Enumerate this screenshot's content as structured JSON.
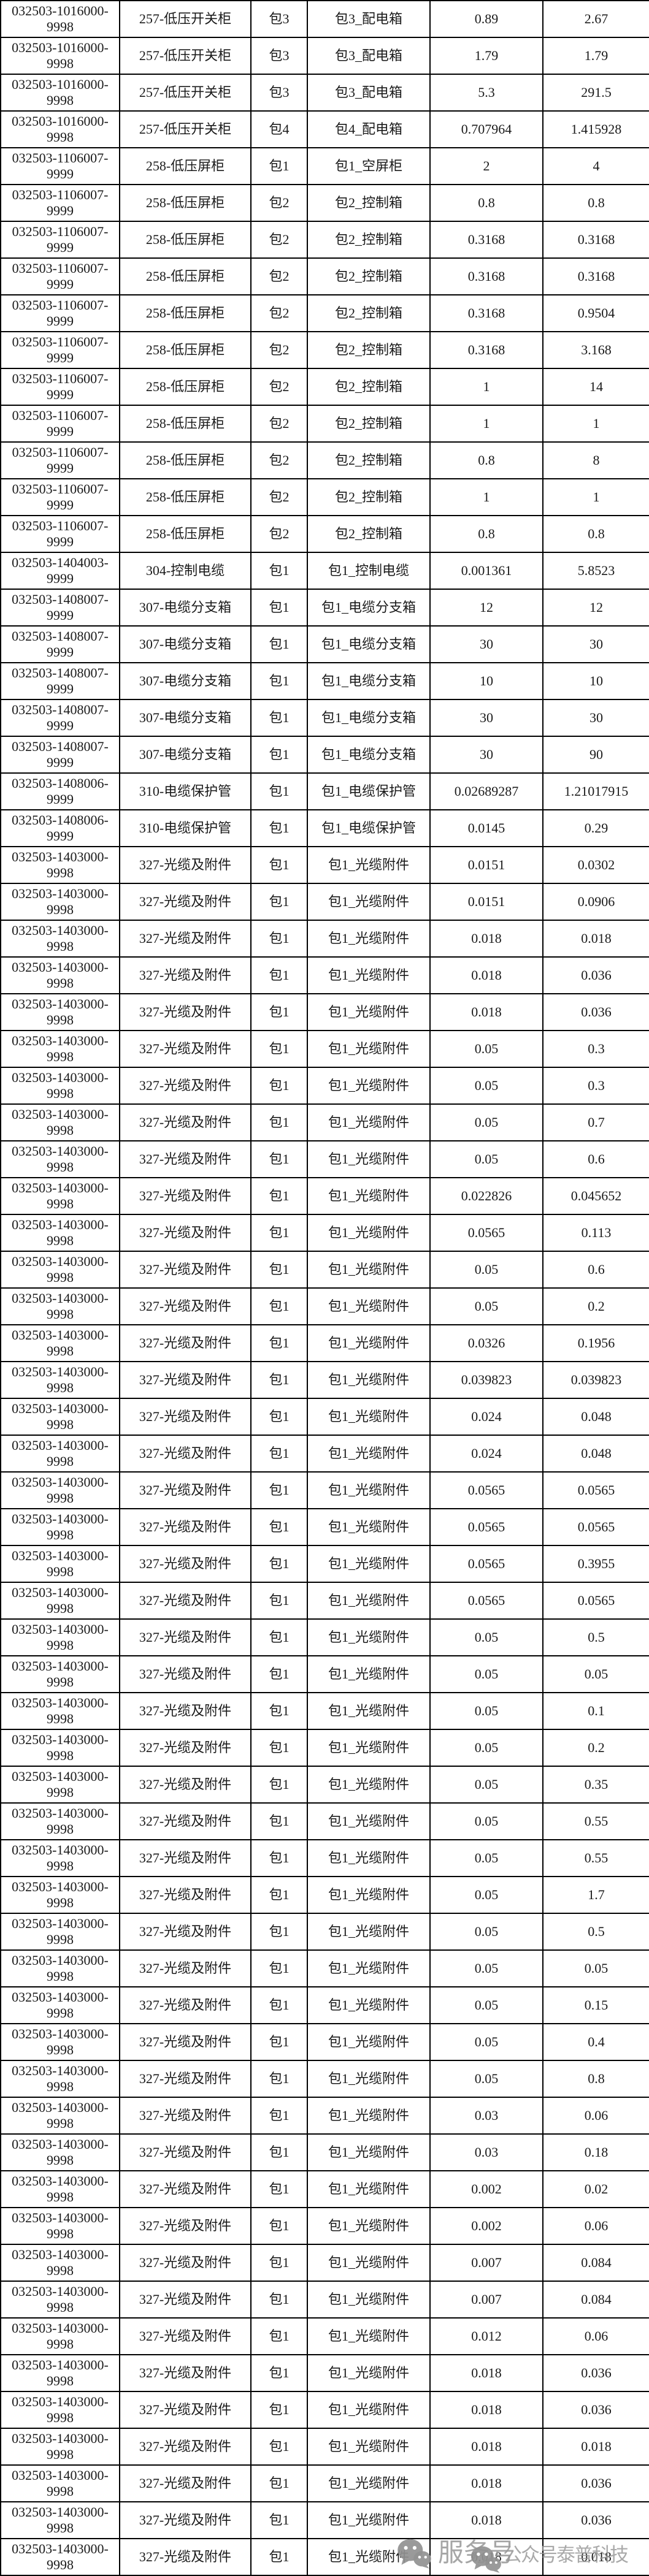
{
  "watermark": {
    "service_label": "服务号",
    "account_label": "公众号泰普科技",
    "icon": "wechat-icon",
    "color": "#969696"
  },
  "table": {
    "rows": [
      [
        "032503-1016000-9998",
        "257-低压开关柜",
        "包3",
        "包3_配电箱",
        "0.89",
        "2.67"
      ],
      [
        "032503-1016000-9998",
        "257-低压开关柜",
        "包3",
        "包3_配电箱",
        "1.79",
        "1.79"
      ],
      [
        "032503-1016000-9998",
        "257-低压开关柜",
        "包3",
        "包3_配电箱",
        "5.3",
        "291.5"
      ],
      [
        "032503-1016000-9998",
        "257-低压开关柜",
        "包4",
        "包4_配电箱",
        "0.707964",
        "1.415928"
      ],
      [
        "032503-1106007-9999",
        "258-低压屏柜",
        "包1",
        "包1_空屏柜",
        "2",
        "4"
      ],
      [
        "032503-1106007-9999",
        "258-低压屏柜",
        "包2",
        "包2_控制箱",
        "0.8",
        "0.8"
      ],
      [
        "032503-1106007-9999",
        "258-低压屏柜",
        "包2",
        "包2_控制箱",
        "0.3168",
        "0.3168"
      ],
      [
        "032503-1106007-9999",
        "258-低压屏柜",
        "包2",
        "包2_控制箱",
        "0.3168",
        "0.3168"
      ],
      [
        "032503-1106007-9999",
        "258-低压屏柜",
        "包2",
        "包2_控制箱",
        "0.3168",
        "0.9504"
      ],
      [
        "032503-1106007-9999",
        "258-低压屏柜",
        "包2",
        "包2_控制箱",
        "0.3168",
        "3.168"
      ],
      [
        "032503-1106007-9999",
        "258-低压屏柜",
        "包2",
        "包2_控制箱",
        "1",
        "14"
      ],
      [
        "032503-1106007-9999",
        "258-低压屏柜",
        "包2",
        "包2_控制箱",
        "1",
        "1"
      ],
      [
        "032503-1106007-9999",
        "258-低压屏柜",
        "包2",
        "包2_控制箱",
        "0.8",
        "8"
      ],
      [
        "032503-1106007-9999",
        "258-低压屏柜",
        "包2",
        "包2_控制箱",
        "1",
        "1"
      ],
      [
        "032503-1106007-9999",
        "258-低压屏柜",
        "包2",
        "包2_控制箱",
        "0.8",
        "0.8"
      ],
      [
        "032503-1404003-9999",
        "304-控制电缆",
        "包1",
        "包1_控制电缆",
        "0.001361",
        "5.8523"
      ],
      [
        "032503-1408007-9999",
        "307-电缆分支箱",
        "包1",
        "包1_电缆分支箱",
        "12",
        "12"
      ],
      [
        "032503-1408007-9999",
        "307-电缆分支箱",
        "包1",
        "包1_电缆分支箱",
        "30",
        "30"
      ],
      [
        "032503-1408007-9999",
        "307-电缆分支箱",
        "包1",
        "包1_电缆分支箱",
        "10",
        "10"
      ],
      [
        "032503-1408007-9999",
        "307-电缆分支箱",
        "包1",
        "包1_电缆分支箱",
        "30",
        "30"
      ],
      [
        "032503-1408007-9999",
        "307-电缆分支箱",
        "包1",
        "包1_电缆分支箱",
        "30",
        "90"
      ],
      [
        "032503-1408006-9999",
        "310-电缆保护管",
        "包1",
        "包1_电缆保护管",
        "0.02689287",
        "1.21017915"
      ],
      [
        "032503-1408006-9999",
        "310-电缆保护管",
        "包1",
        "包1_电缆保护管",
        "0.0145",
        "0.29"
      ],
      [
        "032503-1403000-9998",
        "327-光缆及附件",
        "包1",
        "包1_光缆附件",
        "0.0151",
        "0.0302"
      ],
      [
        "032503-1403000-9998",
        "327-光缆及附件",
        "包1",
        "包1_光缆附件",
        "0.0151",
        "0.0906"
      ],
      [
        "032503-1403000-9998",
        "327-光缆及附件",
        "包1",
        "包1_光缆附件",
        "0.018",
        "0.018"
      ],
      [
        "032503-1403000-9998",
        "327-光缆及附件",
        "包1",
        "包1_光缆附件",
        "0.018",
        "0.036"
      ],
      [
        "032503-1403000-9998",
        "327-光缆及附件",
        "包1",
        "包1_光缆附件",
        "0.018",
        "0.036"
      ],
      [
        "032503-1403000-9998",
        "327-光缆及附件",
        "包1",
        "包1_光缆附件",
        "0.05",
        "0.3"
      ],
      [
        "032503-1403000-9998",
        "327-光缆及附件",
        "包1",
        "包1_光缆附件",
        "0.05",
        "0.3"
      ],
      [
        "032503-1403000-9998",
        "327-光缆及附件",
        "包1",
        "包1_光缆附件",
        "0.05",
        "0.7"
      ],
      [
        "032503-1403000-9998",
        "327-光缆及附件",
        "包1",
        "包1_光缆附件",
        "0.05",
        "0.6"
      ],
      [
        "032503-1403000-9998",
        "327-光缆及附件",
        "包1",
        "包1_光缆附件",
        "0.022826",
        "0.045652"
      ],
      [
        "032503-1403000-9998",
        "327-光缆及附件",
        "包1",
        "包1_光缆附件",
        "0.0565",
        "0.113"
      ],
      [
        "032503-1403000-9998",
        "327-光缆及附件",
        "包1",
        "包1_光缆附件",
        "0.05",
        "0.6"
      ],
      [
        "032503-1403000-9998",
        "327-光缆及附件",
        "包1",
        "包1_光缆附件",
        "0.05",
        "0.2"
      ],
      [
        "032503-1403000-9998",
        "327-光缆及附件",
        "包1",
        "包1_光缆附件",
        "0.0326",
        "0.1956"
      ],
      [
        "032503-1403000-9998",
        "327-光缆及附件",
        "包1",
        "包1_光缆附件",
        "0.039823",
        "0.039823"
      ],
      [
        "032503-1403000-9998",
        "327-光缆及附件",
        "包1",
        "包1_光缆附件",
        "0.024",
        "0.048"
      ],
      [
        "032503-1403000-9998",
        "327-光缆及附件",
        "包1",
        "包1_光缆附件",
        "0.024",
        "0.048"
      ],
      [
        "032503-1403000-9998",
        "327-光缆及附件",
        "包1",
        "包1_光缆附件",
        "0.0565",
        "0.0565"
      ],
      [
        "032503-1403000-9998",
        "327-光缆及附件",
        "包1",
        "包1_光缆附件",
        "0.0565",
        "0.0565"
      ],
      [
        "032503-1403000-9998",
        "327-光缆及附件",
        "包1",
        "包1_光缆附件",
        "0.0565",
        "0.3955"
      ],
      [
        "032503-1403000-9998",
        "327-光缆及附件",
        "包1",
        "包1_光缆附件",
        "0.0565",
        "0.0565"
      ],
      [
        "032503-1403000-9998",
        "327-光缆及附件",
        "包1",
        "包1_光缆附件",
        "0.05",
        "0.5"
      ],
      [
        "032503-1403000-9998",
        "327-光缆及附件",
        "包1",
        "包1_光缆附件",
        "0.05",
        "0.05"
      ],
      [
        "032503-1403000-9998",
        "327-光缆及附件",
        "包1",
        "包1_光缆附件",
        "0.05",
        "0.1"
      ],
      [
        "032503-1403000-9998",
        "327-光缆及附件",
        "包1",
        "包1_光缆附件",
        "0.05",
        "0.2"
      ],
      [
        "032503-1403000-9998",
        "327-光缆及附件",
        "包1",
        "包1_光缆附件",
        "0.05",
        "0.35"
      ],
      [
        "032503-1403000-9998",
        "327-光缆及附件",
        "包1",
        "包1_光缆附件",
        "0.05",
        "0.55"
      ],
      [
        "032503-1403000-9998",
        "327-光缆及附件",
        "包1",
        "包1_光缆附件",
        "0.05",
        "0.55"
      ],
      [
        "032503-1403000-9998",
        "327-光缆及附件",
        "包1",
        "包1_光缆附件",
        "0.05",
        "1.7"
      ],
      [
        "032503-1403000-9998",
        "327-光缆及附件",
        "包1",
        "包1_光缆附件",
        "0.05",
        "0.5"
      ],
      [
        "032503-1403000-9998",
        "327-光缆及附件",
        "包1",
        "包1_光缆附件",
        "0.05",
        "0.05"
      ],
      [
        "032503-1403000-9998",
        "327-光缆及附件",
        "包1",
        "包1_光缆附件",
        "0.05",
        "0.15"
      ],
      [
        "032503-1403000-9998",
        "327-光缆及附件",
        "包1",
        "包1_光缆附件",
        "0.05",
        "0.4"
      ],
      [
        "032503-1403000-9998",
        "327-光缆及附件",
        "包1",
        "包1_光缆附件",
        "0.05",
        "0.8"
      ],
      [
        "032503-1403000-9998",
        "327-光缆及附件",
        "包1",
        "包1_光缆附件",
        "0.03",
        "0.06"
      ],
      [
        "032503-1403000-9998",
        "327-光缆及附件",
        "包1",
        "包1_光缆附件",
        "0.03",
        "0.18"
      ],
      [
        "032503-1403000-9998",
        "327-光缆及附件",
        "包1",
        "包1_光缆附件",
        "0.002",
        "0.02"
      ],
      [
        "032503-1403000-9998",
        "327-光缆及附件",
        "包1",
        "包1_光缆附件",
        "0.002",
        "0.06"
      ],
      [
        "032503-1403000-9998",
        "327-光缆及附件",
        "包1",
        "包1_光缆附件",
        "0.007",
        "0.084"
      ],
      [
        "032503-1403000-9998",
        "327-光缆及附件",
        "包1",
        "包1_光缆附件",
        "0.007",
        "0.084"
      ],
      [
        "032503-1403000-9998",
        "327-光缆及附件",
        "包1",
        "包1_光缆附件",
        "0.012",
        "0.06"
      ],
      [
        "032503-1403000-9998",
        "327-光缆及附件",
        "包1",
        "包1_光缆附件",
        "0.018",
        "0.036"
      ],
      [
        "032503-1403000-9998",
        "327-光缆及附件",
        "包1",
        "包1_光缆附件",
        "0.018",
        "0.036"
      ],
      [
        "032503-1403000-9998",
        "327-光缆及附件",
        "包1",
        "包1_光缆附件",
        "0.018",
        "0.018"
      ],
      [
        "032503-1403000-9998",
        "327-光缆及附件",
        "包1",
        "包1_光缆附件",
        "0.018",
        "0.036"
      ],
      [
        "032503-1403000-9998",
        "327-光缆及附件",
        "包1",
        "包1_光缆附件",
        "0.018",
        "0.036"
      ],
      [
        "032503-1403000-9998",
        "327-光缆及附件",
        "包1",
        "包1_光缆附件",
        "0.018",
        "0.018"
      ]
    ]
  }
}
